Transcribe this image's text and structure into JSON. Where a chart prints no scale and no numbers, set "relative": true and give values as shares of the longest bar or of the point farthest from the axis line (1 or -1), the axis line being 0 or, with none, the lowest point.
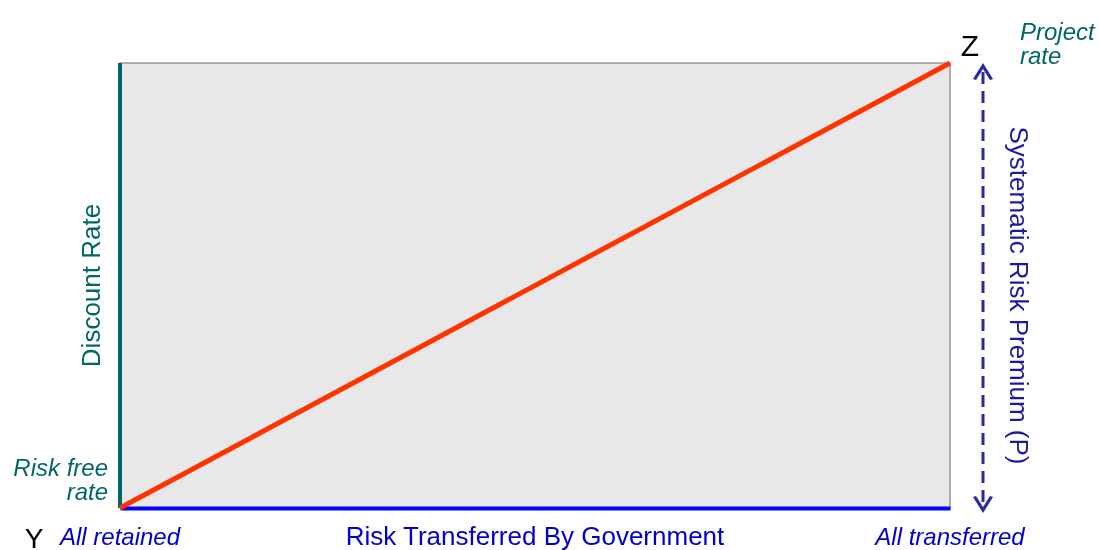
{
  "chart_data": {
    "type": "line",
    "relative": true,
    "xlabel": "Risk Transferred By Government",
    "ylabel": "Discount Rate",
    "categories": [
      "All retained",
      "All transferred"
    ],
    "series": [
      {
        "color": "#ff3300",
        "values": [
          0,
          1
        ]
      }
    ],
    "annotations": [
      "Y",
      "Z",
      "Risk free rate",
      "Project rate",
      "Systematic Risk Premium (P)"
    ],
    "ref_lines": [
      {
        "axis": "x",
        "value": "All retained",
        "color": "#006666"
      }
    ],
    "grid": false,
    "marker": "none",
    "line_style": "solid"
  }
}
